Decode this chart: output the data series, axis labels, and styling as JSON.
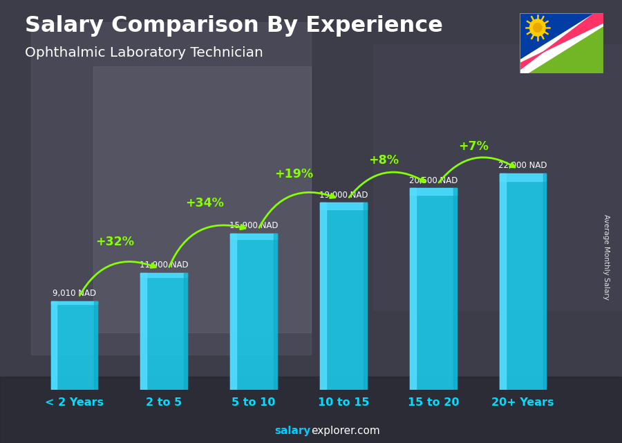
{
  "title_line1": "Salary Comparison By Experience",
  "title_line2": "Ophthalmic Laboratory Technician",
  "categories": [
    "< 2 Years",
    "2 to 5",
    "5 to 10",
    "10 to 15",
    "15 to 20",
    "20+ Years"
  ],
  "values": [
    9010,
    11900,
    15900,
    19000,
    20500,
    22000
  ],
  "salary_labels": [
    "9,010 NAD",
    "11,900 NAD",
    "15,900 NAD",
    "19,000 NAD",
    "20,500 NAD",
    "22,000 NAD"
  ],
  "pct_labels": [
    "+32%",
    "+34%",
    "+19%",
    "+8%",
    "+7%"
  ],
  "bar_color_main": "#1CC8E8",
  "bar_color_light": "#55DDFF",
  "bar_color_dark": "#0AAAC8",
  "pct_color": "#88FF00",
  "salary_label_color": "#FFFFFF",
  "category_color": "#00DDFF",
  "bg_color": "#3a3a4a",
  "title_color": "#FFFFFF",
  "subtitle_color": "#FFFFFF",
  "ylabel_text": "Average Monthly Salary",
  "footer_bold": "salary",
  "footer_normal": "explorer.com",
  "ylim": [
    0,
    27000
  ],
  "flag_blue": "#003DA5",
  "flag_red": "#FF3366",
  "flag_green": "#72B626",
  "flag_white": "#FFFFFF",
  "flag_sun": "#FFCC00"
}
